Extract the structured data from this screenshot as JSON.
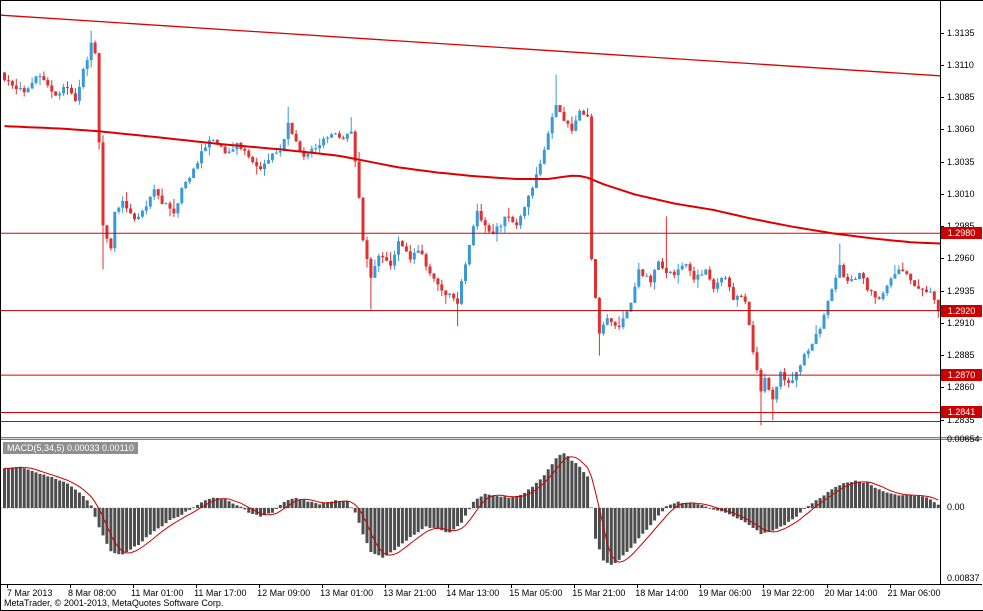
{
  "window": {
    "copyright": "MetaTrader, © 2001-2013, MetaQuotes Software Corp."
  },
  "colors": {
    "bull": "#3a9ad9",
    "bear": "#e03131",
    "line_red": "#dd0000",
    "bid_line": "#aa0000",
    "macd_bar": "#4d4d4d",
    "macd_signal": "#cc0000",
    "flag_bg": "#cc0000",
    "flag_text": "#ffffff",
    "axis_text": "#000000"
  },
  "chart_data": {
    "type": "candlestick",
    "subpanes": [
      "price",
      "MACD"
    ],
    "candle_count": 238,
    "noise": 0.00045,
    "price_axis": {
      "min": 1.2822,
      "max": 1.316,
      "ticks": [
        "1.3135",
        "1.3110",
        "1.3085",
        "1.3060",
        "1.3035",
        "1.3010",
        "1.2985",
        "1.2960",
        "1.2935",
        "1.2910",
        "1.2885",
        "1.2860",
        "1.2835"
      ]
    },
    "price_lines": [
      {
        "price": 1.298,
        "label": "1.2980",
        "color": "#dd0000"
      },
      {
        "price": 1.292,
        "label": "1.2920",
        "color": "#aa0000"
      },
      {
        "price": 1.287,
        "label": "1.2870",
        "color": "#dd0000"
      },
      {
        "price": 1.2841,
        "label": "1.2841",
        "color": "#dd0000"
      },
      {
        "price": 1.2834,
        "label": null,
        "color": "#dd0000"
      }
    ],
    "trendline": {
      "start_price": 1.3149,
      "end_price": 1.3102
    },
    "moving_average": {
      "points": [
        [
          0,
          1.3063
        ],
        [
          15,
          1.3061
        ],
        [
          24,
          1.3059
        ],
        [
          40,
          1.3054
        ],
        [
          55,
          1.3049
        ],
        [
          70,
          1.3045
        ],
        [
          85,
          1.304
        ],
        [
          90,
          1.3037
        ],
        [
          100,
          1.3031
        ],
        [
          110,
          1.3027
        ],
        [
          120,
          1.3024
        ],
        [
          130,
          1.3022
        ],
        [
          138,
          1.3022
        ],
        [
          145,
          1.3025
        ],
        [
          148,
          1.3023
        ],
        [
          152,
          1.3018
        ],
        [
          160,
          1.301
        ],
        [
          170,
          1.3003
        ],
        [
          180,
          1.2998
        ],
        [
          190,
          1.2991
        ],
        [
          200,
          1.2985
        ],
        [
          210,
          1.298
        ],
        [
          220,
          1.2976
        ],
        [
          230,
          1.2973
        ],
        [
          237,
          1.2972
        ]
      ]
    },
    "close_waypoints": [
      [
        0,
        1.31
      ],
      [
        3,
        1.3093
      ],
      [
        5,
        1.309
      ],
      [
        7,
        1.3098
      ],
      [
        9,
        1.3101
      ],
      [
        11,
        1.3094
      ],
      [
        13,
        1.3088
      ],
      [
        16,
        1.3094
      ],
      [
        18,
        1.3084
      ],
      [
        20,
        1.3105
      ],
      [
        22,
        1.3127
      ],
      [
        23,
        1.3118
      ],
      [
        25,
        1.2985
      ],
      [
        27,
        1.2968
      ],
      [
        28,
        1.2996
      ],
      [
        30,
        1.3003
      ],
      [
        33,
        1.299
      ],
      [
        36,
        1.3001
      ],
      [
        38,
        1.3012
      ],
      [
        40,
        1.3004
      ],
      [
        43,
        1.2997
      ],
      [
        45,
        1.3014
      ],
      [
        48,
        1.303
      ],
      [
        51,
        1.3047
      ],
      [
        53,
        1.3053
      ],
      [
        56,
        1.3042
      ],
      [
        59,
        1.3049
      ],
      [
        62,
        1.304
      ],
      [
        65,
        1.3028
      ],
      [
        67,
        1.3038
      ],
      [
        70,
        1.3046
      ],
      [
        72,
        1.3064
      ],
      [
        74,
        1.305
      ],
      [
        76,
        1.3038
      ],
      [
        79,
        1.3047
      ],
      [
        81,
        1.3052
      ],
      [
        83,
        1.3058
      ],
      [
        86,
        1.3051
      ],
      [
        88,
        1.3059
      ],
      [
        89,
        1.3035
      ],
      [
        91,
        1.2976
      ],
      [
        93,
        1.2946
      ],
      [
        95,
        1.2962
      ],
      [
        98,
        1.2954
      ],
      [
        100,
        1.2972
      ],
      [
        103,
        1.296
      ],
      [
        105,
        1.2968
      ],
      [
        108,
        1.295
      ],
      [
        110,
        1.2939
      ],
      [
        113,
        1.2931
      ],
      [
        115,
        1.2925
      ],
      [
        117,
        1.2957
      ],
      [
        120,
        1.2997
      ],
      [
        122,
        1.2985
      ],
      [
        124,
        1.2979
      ],
      [
        127,
        1.2992
      ],
      [
        130,
        1.2988
      ],
      [
        132,
        1.3
      ],
      [
        134,
        1.3014
      ],
      [
        136,
        1.3034
      ],
      [
        138,
        1.3057
      ],
      [
        140,
        1.3081
      ],
      [
        142,
        1.3068
      ],
      [
        144,
        1.3061
      ],
      [
        146,
        1.3077
      ],
      [
        148,
        1.307
      ],
      [
        149,
        1.2958
      ],
      [
        151,
        1.29
      ],
      [
        153,
        1.2916
      ],
      [
        156,
        1.2906
      ],
      [
        159,
        1.2928
      ],
      [
        161,
        1.295
      ],
      [
        164,
        1.2944
      ],
      [
        166,
        1.2957
      ],
      [
        168,
        1.2951
      ],
      [
        170,
        1.2948
      ],
      [
        173,
        1.2957
      ],
      [
        175,
        1.2944
      ],
      [
        178,
        1.295
      ],
      [
        180,
        1.2938
      ],
      [
        183,
        1.2946
      ],
      [
        185,
        1.293
      ],
      [
        188,
        1.2928
      ],
      [
        190,
        1.2888
      ],
      [
        192,
        1.2856
      ],
      [
        193,
        1.2868
      ],
      [
        195,
        1.2852
      ],
      [
        197,
        1.2874
      ],
      [
        199,
        1.2862
      ],
      [
        202,
        1.2878
      ],
      [
        204,
        1.289
      ],
      [
        207,
        1.2908
      ],
      [
        209,
        1.2929
      ],
      [
        212,
        1.2954
      ],
      [
        214,
        1.2942
      ],
      [
        217,
        1.2948
      ],
      [
        219,
        1.2938
      ],
      [
        222,
        1.2929
      ],
      [
        225,
        1.2944
      ],
      [
        227,
        1.2952
      ],
      [
        230,
        1.2944
      ],
      [
        232,
        1.2938
      ],
      [
        235,
        1.2934
      ],
      [
        236,
        1.2929
      ],
      [
        237,
        1.2918
      ]
    ],
    "wick_events": [
      {
        "i": 22,
        "high": 1.3137
      },
      {
        "i": 25,
        "low": 1.2952
      },
      {
        "i": 72,
        "high": 1.3078
      },
      {
        "i": 88,
        "high": 1.307
      },
      {
        "i": 93,
        "low": 1.2921
      },
      {
        "i": 115,
        "low": 1.2908
      },
      {
        "i": 120,
        "high": 1.3003
      },
      {
        "i": 140,
        "high": 1.3103
      },
      {
        "i": 151,
        "low": 1.2885
      },
      {
        "i": 168,
        "high": 1.2993
      },
      {
        "i": 192,
        "low": 1.2831
      },
      {
        "i": 195,
        "low": 1.2835
      },
      {
        "i": 212,
        "high": 1.2972
      }
    ],
    "time_axis": {
      "labels": [
        "7 Mar 2013",
        "8 Mar 08:00",
        "11 Mar 01:00",
        "11 Mar 17:00",
        "12 Mar 09:00",
        "13 Mar 01:00",
        "13 Mar 21:00",
        "14 Mar 13:00",
        "15 Mar 05:00",
        "15 Mar 21:00",
        "18 Mar 14:00",
        "19 Mar 06:00",
        "19 Mar 22:00",
        "20 Mar 14:00",
        "21 Mar 06:00"
      ],
      "first_candle_index": 1,
      "candle_step": 16
    },
    "macd": {
      "label": "MACD(5,34,5) 0.00033 0.00110",
      "params": "5,34,5",
      "current_macd": "0.00033",
      "current_signal": "0.00110",
      "signal_period": 5,
      "scale": {
        "top": "0.00654",
        "zero": "0.00",
        "bottom": "0.00837"
      },
      "hist_waypoints": [
        [
          0,
          0.0038
        ],
        [
          4,
          0.004
        ],
        [
          8,
          0.0034
        ],
        [
          12,
          0.003
        ],
        [
          16,
          0.0024
        ],
        [
          20,
          0.0012
        ],
        [
          22,
          0.0002
        ],
        [
          24,
          -0.0018
        ],
        [
          27,
          -0.0042
        ],
        [
          30,
          -0.0045
        ],
        [
          34,
          -0.0035
        ],
        [
          38,
          -0.0022
        ],
        [
          42,
          -0.0012
        ],
        [
          46,
          -0.0004
        ],
        [
          50,
          0.0006
        ],
        [
          53,
          0.001
        ],
        [
          56,
          0.0008
        ],
        [
          59,
          0.0003
        ],
        [
          62,
          -0.0004
        ],
        [
          65,
          -0.0008
        ],
        [
          68,
          -0.0004
        ],
        [
          71,
          0.0006
        ],
        [
          74,
          0.001
        ],
        [
          77,
          0.0006
        ],
        [
          80,
          0.0004
        ],
        [
          84,
          0.0007
        ],
        [
          87,
          0.0006
        ],
        [
          89,
          -0.0004
        ],
        [
          91,
          -0.0025
        ],
        [
          93,
          -0.0042
        ],
        [
          96,
          -0.0048
        ],
        [
          99,
          -0.004
        ],
        [
          103,
          -0.0028
        ],
        [
          107,
          -0.0018
        ],
        [
          110,
          -0.002
        ],
        [
          113,
          -0.0024
        ],
        [
          116,
          -0.0014
        ],
        [
          119,
          0.0006
        ],
        [
          122,
          0.0014
        ],
        [
          125,
          0.0012
        ],
        [
          128,
          0.001
        ],
        [
          131,
          0.0012
        ],
        [
          134,
          0.002
        ],
        [
          137,
          0.0032
        ],
        [
          140,
          0.0048
        ],
        [
          142,
          0.0053
        ],
        [
          144,
          0.0046
        ],
        [
          146,
          0.004
        ],
        [
          148,
          0.003
        ],
        [
          150,
          -0.003
        ],
        [
          152,
          -0.005
        ],
        [
          154,
          -0.0055
        ],
        [
          156,
          -0.005
        ],
        [
          159,
          -0.0038
        ],
        [
          162,
          -0.0025
        ],
        [
          165,
          -0.0012
        ],
        [
          168,
          0.0002
        ],
        [
          171,
          0.0006
        ],
        [
          174,
          0.0004
        ],
        [
          177,
          0.0003
        ],
        [
          180,
          -0.0002
        ],
        [
          183,
          -0.0004
        ],
        [
          186,
          -0.001
        ],
        [
          189,
          -0.0016
        ],
        [
          192,
          -0.0025
        ],
        [
          195,
          -0.0022
        ],
        [
          198,
          -0.0016
        ],
        [
          201,
          -0.0008
        ],
        [
          204,
          0.0002
        ],
        [
          207,
          0.001
        ],
        [
          210,
          0.0018
        ],
        [
          213,
          0.0024
        ],
        [
          216,
          0.0026
        ],
        [
          219,
          0.0024
        ],
        [
          222,
          0.0018
        ],
        [
          225,
          0.0014
        ],
        [
          228,
          0.0012
        ],
        [
          231,
          0.0012
        ],
        [
          234,
          0.001
        ],
        [
          237,
          0.0003
        ]
      ]
    }
  }
}
